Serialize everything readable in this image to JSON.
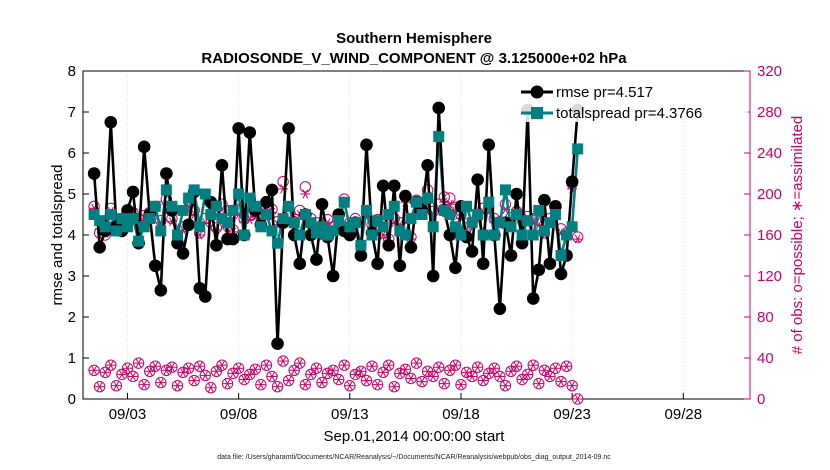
{
  "chart_data": {
    "type": "line",
    "title": "Southern Hemisphere",
    "subtitle": "RADIOSONDE_V_WIND_COMPONENT @ 3.125000e+02 hPa",
    "xlabel": "Sep.01,2014 00:00:00 start",
    "ylabel_left": "rmse and totalspread",
    "ylabel_right": "# of obs: o=possible; ∗=assimilated",
    "footer": "data file: /Users/gharamti/Documents/NCAR/Reanalysis/~/Documents/NCAR/Reanalysis/webpub/obs_diag_output_2014-09.nc",
    "xlim_days": [
      1.0,
      31.0
    ],
    "ylim_left": [
      0,
      8
    ],
    "ylim_right": [
      0,
      320
    ],
    "x_ticks": [
      {
        "day": 3,
        "label": "09/03"
      },
      {
        "day": 8,
        "label": "09/08"
      },
      {
        "day": 13,
        "label": "09/13"
      },
      {
        "day": 18,
        "label": "09/18"
      },
      {
        "day": 23,
        "label": "09/23"
      },
      {
        "day": 28,
        "label": "09/28"
      }
    ],
    "y_ticks_left": [
      "0",
      "1",
      "2",
      "3",
      "4",
      "5",
      "6",
      "7",
      "8"
    ],
    "y_ticks_right": [
      "0",
      "40",
      "80",
      "120",
      "160",
      "200",
      "240",
      "280",
      "320"
    ],
    "x_start_day": 1.5,
    "x_step_days": 0.25,
    "legend": [
      {
        "name": "rmse",
        "label": "rmse pr=4.517",
        "color": "#000000"
      },
      {
        "name": "totalspread",
        "label": "totalspread pr=4.3766",
        "color": "#008080"
      }
    ],
    "colors": {
      "rmse": "#000000",
      "spread": "#008080",
      "obs": "#cc0066"
    },
    "series": [
      {
        "name": "rmse",
        "values": [
          5.5,
          3.7,
          4.1,
          6.75,
          4.2,
          4.1,
          4.6,
          5.05,
          3.8,
          6.15,
          4.5,
          3.25,
          2.65,
          5.5,
          4.6,
          3.8,
          3.55,
          4.25,
          5.05,
          2.7,
          2.5,
          4.8,
          3.75,
          5.7,
          3.9,
          3.9,
          6.6,
          4.0,
          6.5,
          4.6,
          4.25,
          4.8,
          5.1,
          1.35,
          4.3,
          6.6,
          4.0,
          3.3,
          4.5,
          4.0,
          3.4,
          4.75,
          3.95,
          3.0,
          4.5,
          4.1,
          4.0,
          4.3,
          3.5,
          6.2,
          4.05,
          3.3,
          5.2,
          3.75,
          5.2,
          3.25,
          4.95,
          3.7,
          4.8,
          4.6,
          5.7,
          3.0,
          7.1,
          4.6,
          4.0,
          3.2,
          4.7,
          3.95,
          3.6,
          5.35,
          3.3,
          6.2,
          4.0,
          2.2,
          4.3,
          3.5,
          5.0,
          3.8,
          7.05,
          2.45,
          3.15,
          4.85,
          3.3,
          4.7,
          3.05,
          3.5,
          5.3,
          7.05
        ]
      },
      {
        "name": "totalspread",
        "values": [
          4.5,
          4.35,
          4.2,
          4.5,
          4.1,
          4.4,
          4.2,
          4.4,
          3.85,
          4.2,
          4.4,
          4.7,
          4.1,
          5.1,
          4.7,
          4.0,
          4.6,
          4.9,
          5.1,
          4.2,
          5.0,
          4.5,
          4.7,
          4.4,
          4.3,
          4.6,
          5.0,
          4.0,
          4.9,
          4.7,
          4.2,
          4.5,
          4.1,
          3.8,
          4.4,
          4.7,
          4.3,
          4.0,
          4.5,
          4.3,
          4.05,
          4.2,
          4.0,
          4.1,
          4.35,
          4.8,
          4.2,
          4.3,
          3.75,
          4.6,
          4.0,
          4.35,
          4.2,
          4.5,
          4.7,
          4.1,
          4.0,
          4.4,
          4.8,
          4.5,
          4.9,
          4.2,
          6.4,
          4.6,
          4.5,
          4.2,
          4.0,
          4.7,
          4.3,
          4.5,
          4.0,
          4.8,
          4.0,
          4.3,
          5.1,
          4.2,
          4.5,
          4.0,
          4.35,
          4.0,
          4.6,
          4.1,
          4.3,
          4.5,
          3.5,
          4.0,
          4.2,
          6.1
        ]
      },
      {
        "name": "possible_obs",
        "values": [
          188,
          162,
          160,
          186,
          171,
          176,
          176,
          182,
          176,
          179,
          182,
          188,
          174,
          195,
          176,
          152,
          168,
          193,
          184,
          162,
          176,
          179,
          167,
          190,
          169,
          165,
          185,
          176,
          179,
          181,
          172,
          188,
          185,
          173,
          212,
          180,
          173,
          184,
          207,
          176,
          172,
          161,
          175,
          168,
          179,
          195,
          172,
          176,
          150,
          182,
          170,
          175,
          162,
          156,
          176,
          172,
          197,
          158,
          194,
          188,
          204,
          183,
          190,
          197,
          196,
          187,
          180,
          167,
          172,
          178,
          186,
          187,
          176,
          173,
          190,
          177,
          183,
          176,
          178,
          176,
          174,
          162,
          176,
          186,
          166,
          162,
          210,
          158
        ]
      },
      {
        "name": "assimilated_obs",
        "values": [
          186,
          166,
          162,
          183,
          170,
          172,
          175,
          180,
          174,
          176,
          180,
          185,
          172,
          190,
          173,
          151,
          165,
          188,
          180,
          160,
          172,
          175,
          165,
          185,
          167,
          163,
          180,
          172,
          175,
          178,
          170,
          184,
          182,
          170,
          205,
          176,
          170,
          180,
          200,
          172,
          170,
          159,
          172,
          166,
          175,
          190,
          170,
          172,
          147,
          178,
          168,
          172,
          160,
          154,
          172,
          170,
          192,
          156,
          190,
          184,
          198,
          180,
          186,
          192,
          190,
          183,
          176,
          165,
          170,
          175,
          182,
          182,
          172,
          170,
          185,
          175,
          180,
          172,
          175,
          172,
          170,
          160,
          172,
          182,
          162,
          160,
          205,
          156
        ]
      },
      {
        "name": "possible_obs_low",
        "values": [
          28,
          12,
          26,
          33,
          13,
          24,
          30,
          22,
          35,
          14,
          27,
          32,
          16,
          28,
          31,
          13,
          26,
          30,
          18,
          32,
          23,
          11,
          27,
          33,
          15,
          25,
          30,
          19,
          24,
          29,
          14,
          33,
          22,
          12,
          37,
          18,
          28,
          35,
          14,
          24,
          30,
          16,
          25,
          28,
          19,
          33,
          13,
          24,
          27,
          18,
          32,
          14,
          26,
          33,
          12,
          25,
          29,
          20,
          35,
          17,
          27,
          22,
          31,
          15,
          28,
          33,
          14,
          26,
          22,
          31,
          18,
          25,
          30,
          22,
          13,
          27,
          32,
          19,
          24,
          33,
          15,
          28,
          22,
          30,
          17,
          32,
          13,
          0
        ]
      }
    ]
  }
}
